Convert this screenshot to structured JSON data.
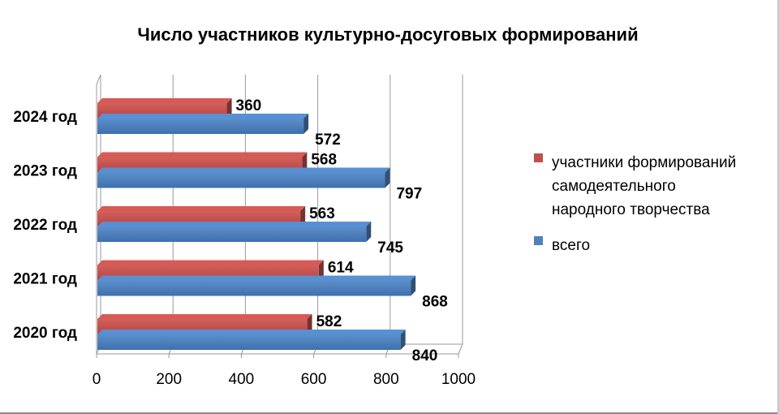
{
  "chart_data": {
    "type": "bar",
    "orientation": "horizontal",
    "title": "Число участников культурно-досуговых формирований",
    "categories": [
      "2020 год",
      "2021 год",
      "2022 год",
      "2023 год",
      "2024 год"
    ],
    "series": [
      {
        "name": "участники формирований самодеятельного народного творчества",
        "legend_lines": [
          "участники формирований",
          "самодеятельного",
          "народного творчества"
        ],
        "color": "#C0504D",
        "values": [
          582,
          614,
          563,
          568,
          360
        ]
      },
      {
        "name": "всего",
        "legend_lines": [
          "всего"
        ],
        "color": "#4F81BD",
        "values": [
          840,
          868,
          745,
          797,
          572
        ]
      }
    ],
    "xlim": [
      0,
      1000
    ],
    "xticks": [
      "0",
      "200",
      "400",
      "600",
      "800",
      "1000"
    ],
    "grid": true,
    "legend_position": "right"
  }
}
